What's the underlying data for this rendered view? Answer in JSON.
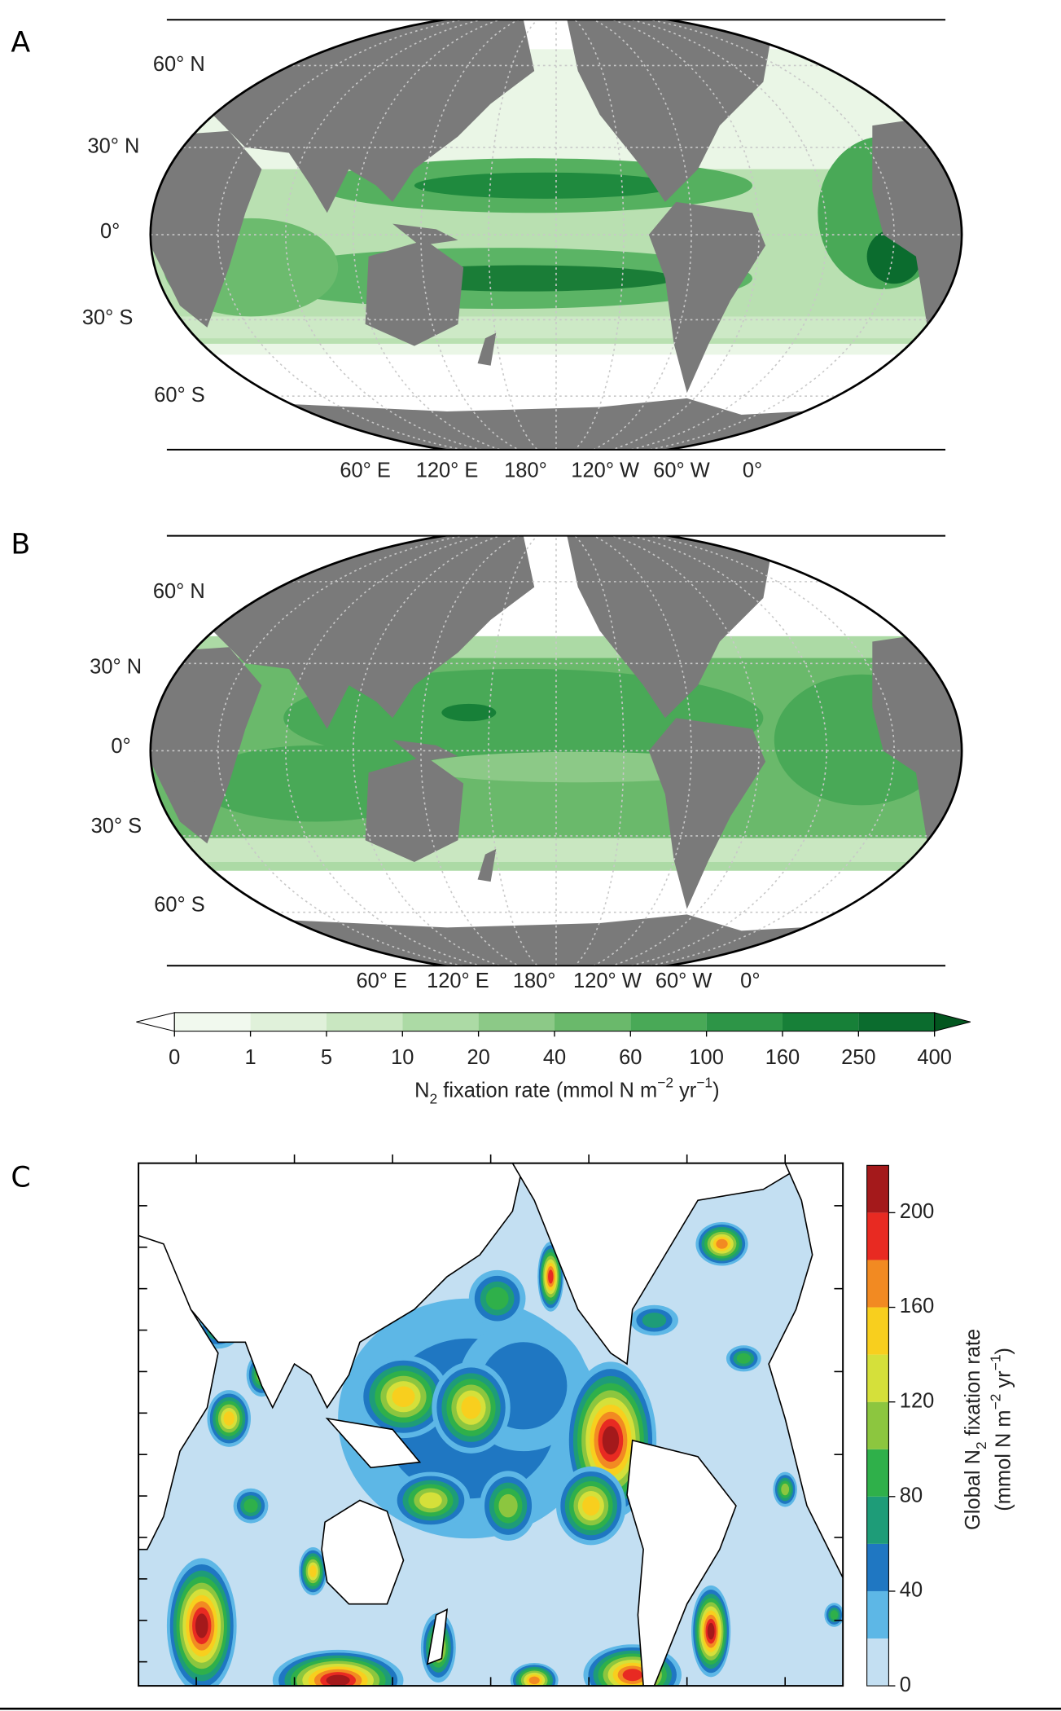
{
  "panels": [
    {
      "label": "A",
      "lat_labels": [
        "60° N",
        "30° N",
        "0°",
        "30° S",
        "60° S"
      ],
      "lon_labels": [
        "60° E",
        "120° E",
        "180°",
        "120° W",
        "60° W",
        "0°"
      ]
    },
    {
      "label": "B",
      "lat_labels": [
        "60° N",
        "30° N",
        "0°",
        "30° S",
        "60° S"
      ],
      "lon_labels": [
        "60° E",
        "120° E",
        "180°",
        "120° W",
        "60° W",
        "0°"
      ]
    },
    {
      "label": "C"
    }
  ],
  "colorbar_b": {
    "ticks": [
      0,
      1,
      5,
      10,
      20,
      40,
      60,
      100,
      160,
      250,
      400
    ],
    "colors": [
      "#ffffff",
      "#f1f9ee",
      "#e0f1da",
      "#c9e7c1",
      "#acdaa5",
      "#8cc987",
      "#6ab96b",
      "#49a957",
      "#2d9547",
      "#178038",
      "#0b6c2e",
      "#03561f"
    ],
    "title": [
      "N",
      "2",
      " fixation rate (mmol N m",
      "−2",
      " yr",
      "−1",
      ")"
    ]
  },
  "colorbar_c": {
    "lim": [
      0,
      220
    ],
    "ticks": [
      0,
      40,
      80,
      120,
      160,
      200
    ],
    "colors": [
      "#c3dff2",
      "#5db7e6",
      "#1f77c2",
      "#1e9c78",
      "#2fb04a",
      "#8cc63f",
      "#d5e03a",
      "#f8cf1e",
      "#f28a22",
      "#e82a22",
      "#a4191b"
    ],
    "title": [
      [
        "Global N",
        "2",
        " fixation rate"
      ],
      [
        "(mmol N m",
        "−2",
        " yr",
        "−1",
        ")"
      ]
    ]
  }
}
